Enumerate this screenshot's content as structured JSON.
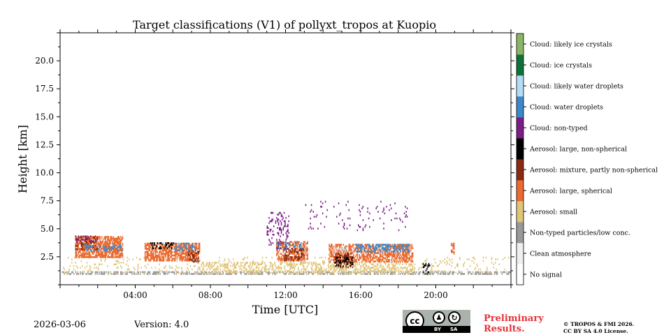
{
  "chart_data": {
    "type": "heatmap",
    "title": "Target classifications (V1) of pollyxt_tropos at Kuopio",
    "xlabel": "Time [UTC]",
    "ylabel": "Height [km]",
    "xlim_hours": [
      0,
      24
    ],
    "ylim_km": [
      0,
      22.5
    ],
    "x_ticks": [
      {
        "value": 4,
        "label": "04:00"
      },
      {
        "value": 8,
        "label": "08:00"
      },
      {
        "value": 12,
        "label": "12:00"
      },
      {
        "value": 16,
        "label": "16:00"
      },
      {
        "value": 20,
        "label": "20:00"
      }
    ],
    "y_ticks": [
      {
        "value": 2.5,
        "label": "2.5"
      },
      {
        "value": 5.0,
        "label": "5.0"
      },
      {
        "value": 7.5,
        "label": "7.5"
      },
      {
        "value": 10.0,
        "label": "10.0"
      },
      {
        "value": 12.5,
        "label": "12.5"
      },
      {
        "value": 15.0,
        "label": "15.0"
      },
      {
        "value": 17.5,
        "label": "17.5"
      },
      {
        "value": 20.0,
        "label": "20.0"
      }
    ],
    "legend": [
      {
        "label": "No signal",
        "color": "#ffffff"
      },
      {
        "label": "Clean atmosphere",
        "color": "#efefef"
      },
      {
        "label": "Non-typed particles/low conc.",
        "color": "#999999"
      },
      {
        "label": "Aerosol: small",
        "color": "#e0c478"
      },
      {
        "label": "Aerosol: large, spherical",
        "color": "#ea6a30"
      },
      {
        "label": "Aerosol: mixture, partly non-spherical",
        "color": "#8a2a12"
      },
      {
        "label": "Aerosol: large, non-spherical",
        "color": "#000000"
      },
      {
        "label": "Cloud: non-typed",
        "color": "#7b1d86"
      },
      {
        "label": "Cloud: water droplets",
        "color": "#3c88c8"
      },
      {
        "label": "Cloud: likely water droplets",
        "color": "#b4dcf6"
      },
      {
        "label": "Cloud: ice crystals",
        "color": "#0e7138"
      },
      {
        "label": "Cloud: likely ice crystals",
        "color": "#8cb466"
      }
    ],
    "regions": [
      {
        "t0": 0.1,
        "t1": 24,
        "h0": 0.9,
        "h1": 1.2,
        "cls": 2,
        "density": 0.55
      },
      {
        "t0": 0.1,
        "t1": 24,
        "h0": 1.0,
        "h1": 2.4,
        "cls": 3,
        "density": 0.1
      },
      {
        "t0": 7.3,
        "t1": 18.8,
        "h0": 1.0,
        "h1": 2.0,
        "cls": 3,
        "density": 0.35
      },
      {
        "t0": 0.8,
        "t1": 3.3,
        "h0": 2.4,
        "h1": 4.3,
        "cls": 4,
        "density": 0.75
      },
      {
        "t0": 0.8,
        "t1": 2.0,
        "h0": 3.1,
        "h1": 4.2,
        "cls": 5,
        "density": 0.35
      },
      {
        "t0": 1.2,
        "t1": 3.3,
        "h0": 3.0,
        "h1": 3.5,
        "cls": 8,
        "density": 0.3
      },
      {
        "t0": 0.8,
        "t1": 2.0,
        "h0": 3.8,
        "h1": 4.3,
        "cls": 7,
        "density": 0.25
      },
      {
        "t0": 4.5,
        "t1": 7.4,
        "h0": 2.1,
        "h1": 3.7,
        "cls": 4,
        "density": 0.7
      },
      {
        "t0": 4.8,
        "t1": 6.0,
        "h0": 3.2,
        "h1": 3.7,
        "cls": 6,
        "density": 0.3
      },
      {
        "t0": 6.0,
        "t1": 7.2,
        "h0": 3.0,
        "h1": 3.6,
        "cls": 8,
        "density": 0.35
      },
      {
        "t0": 6.8,
        "t1": 7.4,
        "h0": 2.0,
        "h1": 2.9,
        "cls": 5,
        "density": 0.4
      },
      {
        "t0": 11.5,
        "t1": 13.2,
        "h0": 2.1,
        "h1": 3.8,
        "cls": 4,
        "density": 0.55
      },
      {
        "t0": 11.9,
        "t1": 13.0,
        "h0": 2.1,
        "h1": 3.2,
        "cls": 5,
        "density": 0.4
      },
      {
        "t0": 11.5,
        "t1": 13.2,
        "h0": 3.2,
        "h1": 3.8,
        "cls": 8,
        "density": 0.3
      },
      {
        "t0": 11.0,
        "t1": 12.2,
        "h0": 3.2,
        "h1": 6.4,
        "cls": 7,
        "density": 0.18
      },
      {
        "t0": 14.3,
        "t1": 18.8,
        "h0": 2.0,
        "h1": 3.5,
        "cls": 4,
        "density": 0.6
      },
      {
        "t0": 14.6,
        "t1": 15.6,
        "h0": 1.5,
        "h1": 2.8,
        "cls": 5,
        "density": 0.45
      },
      {
        "t0": 14.6,
        "t1": 15.6,
        "h0": 1.6,
        "h1": 2.4,
        "cls": 6,
        "density": 0.3
      },
      {
        "t0": 15.7,
        "t1": 18.6,
        "h0": 2.9,
        "h1": 3.5,
        "cls": 8,
        "density": 0.4
      },
      {
        "t0": 14.3,
        "t1": 15.3,
        "h0": 2.8,
        "h1": 3.3,
        "cls": 9,
        "density": 0.2
      },
      {
        "t0": 13.0,
        "t1": 18.5,
        "h0": 4.8,
        "h1": 7.5,
        "cls": 7,
        "density": 0.05
      },
      {
        "t0": 19.3,
        "t1": 19.7,
        "h0": 0.9,
        "h1": 1.8,
        "cls": 6,
        "density": 0.3
      },
      {
        "t0": 20.8,
        "t1": 21.0,
        "h0": 2.7,
        "h1": 3.6,
        "cls": 4,
        "density": 0.45
      }
    ]
  },
  "footer": {
    "date": "2026-03-06",
    "version": "Version: 4.0",
    "preliminary_line1": "Preliminary",
    "preliminary_line2": "Results.",
    "copyright_line1": "© TROPOS & FMI 2026.",
    "copyright_line2": "CC BY SA 4.0 License.",
    "license_badge": {
      "cc": "cc",
      "by": "BY",
      "sa": "SA"
    }
  }
}
